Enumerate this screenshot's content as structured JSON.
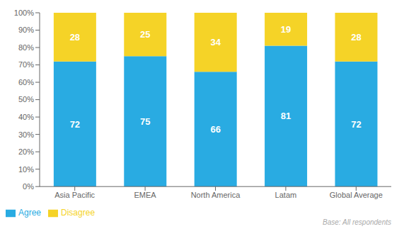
{
  "chart_data": {
    "type": "bar",
    "categories": [
      "Asia Pacific",
      "EMEA",
      "North America",
      "Latam",
      "Global Average"
    ],
    "series": [
      {
        "name": "Agree",
        "color": "#29ABE2",
        "values": [
          72,
          75,
          66,
          81,
          72
        ]
      },
      {
        "name": "Disagree",
        "color": "#F5D327",
        "values": [
          28,
          25,
          34,
          19,
          28
        ]
      }
    ],
    "stacked": true,
    "data_labels": true,
    "ylim": [
      0,
      100
    ],
    "yticks": [
      {
        "value": 0,
        "label": "0%"
      },
      {
        "value": 10,
        "label": "10%"
      },
      {
        "value": 20,
        "label": "20%"
      },
      {
        "value": 30,
        "label": "30%"
      },
      {
        "value": 40,
        "label": "40%"
      },
      {
        "value": 50,
        "label": "50%"
      },
      {
        "value": 60,
        "label": "60%"
      },
      {
        "value": 70,
        "label": "70%"
      },
      {
        "value": 80,
        "label": "80%"
      },
      {
        "value": 90,
        "label": "90%"
      },
      {
        "value": 100,
        "label": "100%"
      }
    ],
    "grid": false,
    "legend": "lower left",
    "annotations": [
      "Base: All respondents"
    ]
  }
}
